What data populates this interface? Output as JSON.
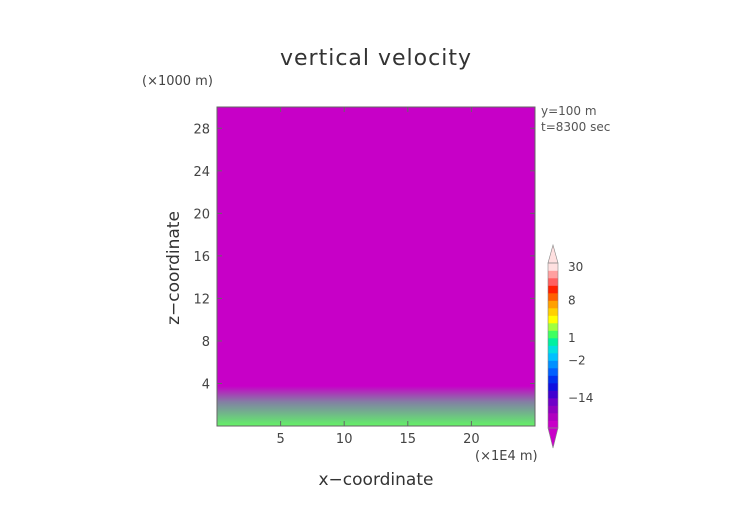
{
  "chart_data": {
    "type": "heatmap",
    "title": "vertical velocity",
    "xlabel": "x−coordinate",
    "ylabel": "z−coordinate",
    "x_unit": "(×1E4 m)",
    "y_unit": "(×1000 m)",
    "annotations": [
      "y=100 m",
      "t=8300 sec"
    ],
    "xlim": [
      0,
      25
    ],
    "ylim": [
      0,
      30
    ],
    "x_ticks": [
      5,
      10,
      15,
      20
    ],
    "y_ticks": [
      4,
      8,
      12,
      16,
      20,
      24,
      28
    ],
    "colorbar": {
      "tick_labels": [
        "30",
        "8",
        "1",
        "−2",
        "−14"
      ],
      "tick_values": [
        30,
        8,
        1,
        -2,
        -14
      ],
      "levels": [
        -30,
        -26,
        -22,
        -18,
        -14,
        -10,
        -6,
        -4,
        -3,
        -2,
        -1,
        0,
        1,
        2,
        3,
        4,
        6,
        8,
        12,
        16,
        20,
        30
      ],
      "colors": [
        "#c800c8",
        "#b000c0",
        "#9000c0",
        "#7000c8",
        "#4000d0",
        "#1010e0",
        "#0030f0",
        "#0060ff",
        "#0090ff",
        "#00c0ff",
        "#00e0e0",
        "#00f0a0",
        "#40ff60",
        "#a0ff40",
        "#ffff00",
        "#ffd000",
        "#ffa000",
        "#ff6000",
        "#ff2000",
        "#ff6060",
        "#ffa0a0",
        "#ffe0e0"
      ]
    }
  }
}
